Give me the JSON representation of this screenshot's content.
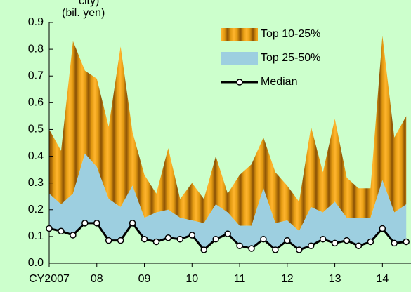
{
  "chart_data": {
    "type": "area",
    "title": "city)",
    "subtitle": "(bil. yen)",
    "x": [
      2007,
      2007.25,
      2007.5,
      2007.75,
      2008,
      2008.25,
      2008.5,
      2008.75,
      2009,
      2009.25,
      2009.5,
      2009.75,
      2010,
      2010.25,
      2010.5,
      2010.75,
      2011,
      2011.25,
      2011.5,
      2011.75,
      2012,
      2012.25,
      2012.5,
      2012.75,
      2013,
      2013.25,
      2013.5,
      2013.75,
      2014,
      2014.25,
      2014.5
    ],
    "series": [
      {
        "name": "Top 10-25%",
        "type": "band",
        "color": "#e39a12",
        "values": [
          0.5,
          0.42,
          0.83,
          0.72,
          0.69,
          0.51,
          0.81,
          0.49,
          0.33,
          0.26,
          0.43,
          0.24,
          0.3,
          0.24,
          0.4,
          0.26,
          0.33,
          0.37,
          0.47,
          0.34,
          0.29,
          0.23,
          0.51,
          0.34,
          0.54,
          0.32,
          0.28,
          0.28,
          0.85,
          0.47,
          0.55
        ]
      },
      {
        "name": "Top 25-50%",
        "type": "band",
        "color": "#9dcfe0",
        "values": [
          0.26,
          0.22,
          0.26,
          0.41,
          0.36,
          0.24,
          0.21,
          0.29,
          0.17,
          0.19,
          0.2,
          0.17,
          0.16,
          0.15,
          0.22,
          0.19,
          0.14,
          0.14,
          0.28,
          0.15,
          0.16,
          0.12,
          0.21,
          0.19,
          0.23,
          0.17,
          0.17,
          0.17,
          0.31,
          0.19,
          0.22
        ]
      },
      {
        "name": "Median",
        "type": "line",
        "color": "#000000",
        "values": [
          0.13,
          0.12,
          0.105,
          0.15,
          0.15,
          0.085,
          0.085,
          0.15,
          0.09,
          0.08,
          0.095,
          0.09,
          0.105,
          0.05,
          0.09,
          0.11,
          0.065,
          0.055,
          0.09,
          0.05,
          0.085,
          0.05,
          0.065,
          0.09,
          0.075,
          0.085,
          0.065,
          0.08,
          0.13,
          0.075,
          0.08
        ]
      }
    ],
    "xlim": [
      2007,
      2014.6
    ],
    "xticks": [
      {
        "value": 2007,
        "label": "CY2007"
      },
      {
        "value": 2008,
        "label": "08"
      },
      {
        "value": 2009,
        "label": "09"
      },
      {
        "value": 2010,
        "label": "10"
      },
      {
        "value": 2011,
        "label": "11"
      },
      {
        "value": 2012,
        "label": "12"
      },
      {
        "value": 2013,
        "label": "13"
      },
      {
        "value": 2014,
        "label": "14"
      }
    ],
    "ylim": [
      0,
      0.9
    ],
    "yticks": [
      {
        "value": 0,
        "label": "0.0"
      },
      0.1,
      0.2,
      0.3,
      0.4,
      0.5,
      0.6,
      0.7,
      0.8,
      0.9
    ],
    "legend": "upper-right"
  }
}
